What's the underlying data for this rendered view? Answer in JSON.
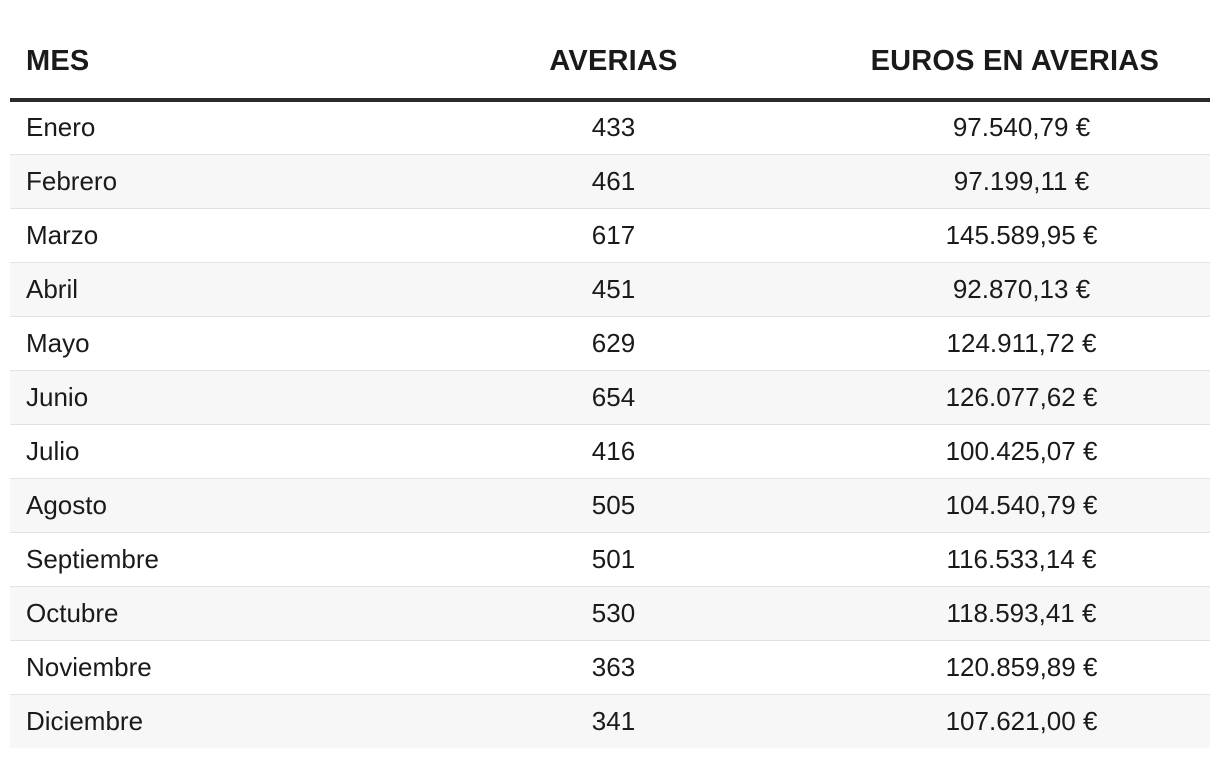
{
  "chart_data": {
    "type": "table",
    "columns": [
      "MES",
      "AVERIAS",
      "EUROS EN AVERIAS"
    ],
    "rows": [
      {
        "mes": "Enero",
        "averias": "433",
        "euros": "97.540,79 €"
      },
      {
        "mes": "Febrero",
        "averias": "461",
        "euros": "97.199,11 €"
      },
      {
        "mes": "Marzo",
        "averias": "617",
        "euros": "145.589,95 €"
      },
      {
        "mes": "Abril",
        "averias": "451",
        "euros": "92.870,13 €"
      },
      {
        "mes": "Mayo",
        "averias": "629",
        "euros": "124.911,72 €"
      },
      {
        "mes": "Junio",
        "averias": "654",
        "euros": "126.077,62 €"
      },
      {
        "mes": "Julio",
        "averias": "416",
        "euros": "100.425,07 €"
      },
      {
        "mes": "Agosto",
        "averias": "505",
        "euros": "104.540,79 €"
      },
      {
        "mes": "Septiembre",
        "averias": "501",
        "euros": "116.533,14 €"
      },
      {
        "mes": "Octubre",
        "averias": "530",
        "euros": "118.593,41 €"
      },
      {
        "mes": "Noviembre",
        "averias": "363",
        "euros": "120.859,89 €"
      },
      {
        "mes": "Diciembre",
        "averias": "341",
        "euros": "107.621,00 €"
      }
    ]
  }
}
